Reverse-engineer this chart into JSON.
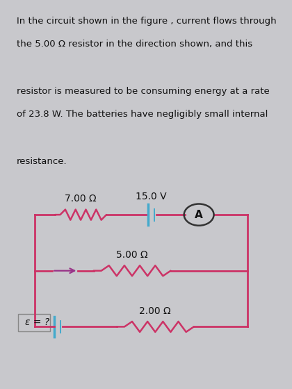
{
  "text_lines": [
    "In the circuit shown in the figure , current flows through",
    "the 5.00 Ω resistor in the direction shown, and this",
    "resistor is measured to be consuming energy at a rate",
    "of 23.8 W. The batteries have negligibly small internal",
    "resistance."
  ],
  "text_color": "#111111",
  "bg_color": "#c8c8cc",
  "text_box_bg": "#dcdcda",
  "circuit_box_bg": "#d8d4d0",
  "pink": "#cc3366",
  "blue": "#44aacc",
  "arrow_color": "#993388",
  "label_7": "7.00 Ω",
  "label_5": "5.00 Ω",
  "label_2": "2.00 Ω",
  "label_15V": "15.0 V",
  "label_emf": "ε = ?",
  "label_A": "A",
  "font_size_text": 9.5,
  "font_size_label": 9.5
}
